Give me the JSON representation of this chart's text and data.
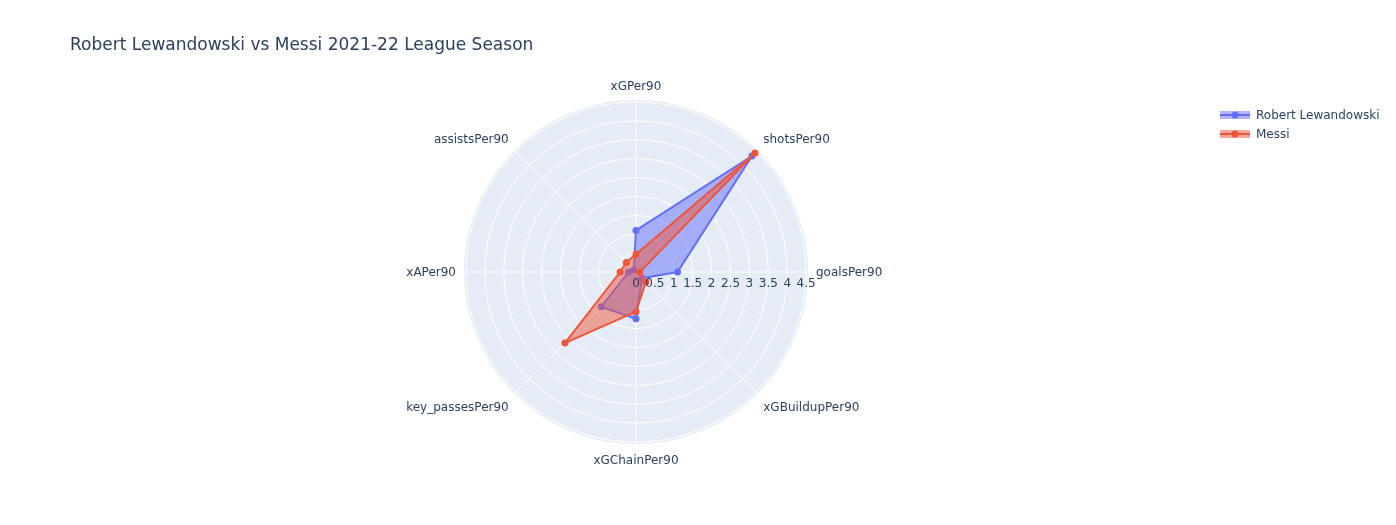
{
  "chart_data": {
    "type": "radar",
    "title": "Robert Lewandowski vs Messi 2021-22 League Season",
    "categories": [
      "xGPer90",
      "shotsPer90",
      "goalsPer90",
      "xGBuildupPer90",
      "xGChainPer90",
      "key_passesPer90",
      "xAPer90",
      "assistsPer90"
    ],
    "series": [
      {
        "name": "Robert Lewandowski",
        "color": "#636efa",
        "values": [
          1.1,
          4.34,
          1.1,
          0.23,
          1.24,
          1.3,
          0.2,
          0.08
        ]
      },
      {
        "name": "Messi",
        "color": "#ef553b",
        "values": [
          0.47,
          4.45,
          0.1,
          0.37,
          1.05,
          2.66,
          0.42,
          0.36
        ]
      }
    ],
    "ylim": [
      0,
      4.55
    ],
    "yticks": [
      0,
      0.5,
      1,
      1.5,
      2,
      2.5,
      3,
      3.5,
      4,
      4.5
    ],
    "grid": true,
    "legend": "top right",
    "marker": "circle"
  }
}
